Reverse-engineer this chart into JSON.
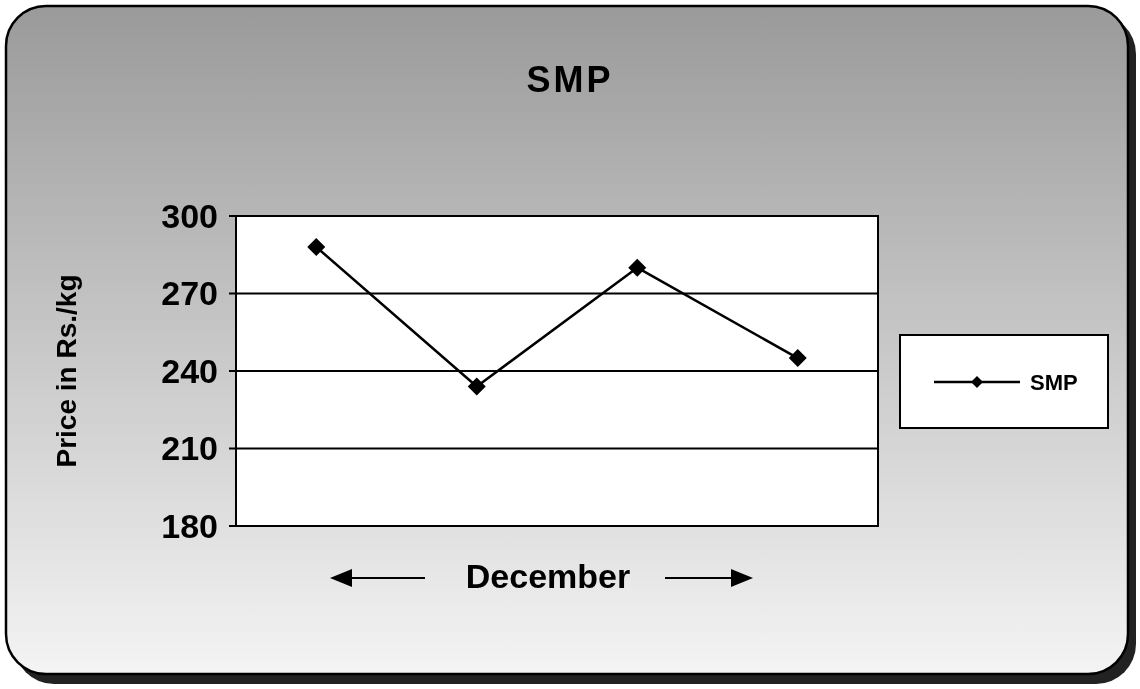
{
  "chart_data": {
    "type": "line",
    "title": "SMP",
    "xlabel": "December",
    "ylabel": "Price in Rs./kg",
    "categories": [
      null,
      null,
      null,
      null
    ],
    "series": [
      {
        "name": "SMP",
        "color": "#000000",
        "values": [
          288,
          234,
          280,
          245
        ]
      }
    ],
    "ylim": [
      180,
      300
    ],
    "yticks": [
      180,
      210,
      240,
      270,
      300
    ],
    "grid": "y",
    "legend": "right",
    "marker": "diamond",
    "line_style": "solid"
  }
}
